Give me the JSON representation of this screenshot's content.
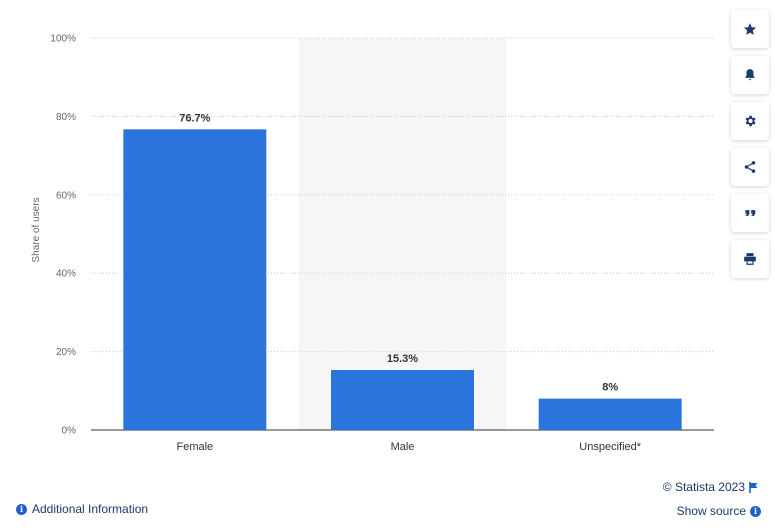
{
  "chart_data": {
    "type": "bar",
    "categories": [
      "Female",
      "Male",
      "Unspecified*"
    ],
    "values": [
      76.7,
      15.3,
      8
    ],
    "value_labels": [
      "76.7%",
      "15.3%",
      "8%"
    ],
    "ylabel": "Share of users",
    "xlabel": "",
    "ylim": [
      0,
      100
    ],
    "yticks": [
      0,
      20,
      40,
      60,
      80,
      100
    ],
    "ytick_labels": [
      "0%",
      "20%",
      "40%",
      "60%",
      "80%",
      "100%"
    ],
    "grid": true,
    "bar_color": "#2a74db",
    "highlight_category": "Male",
    "highlight_color": "#f6f6f6"
  },
  "toolbar": {
    "buttons": [
      {
        "name": "star-icon"
      },
      {
        "name": "bell-icon"
      },
      {
        "name": "gear-icon"
      },
      {
        "name": "share-icon"
      },
      {
        "name": "quote-icon"
      },
      {
        "name": "print-icon"
      }
    ]
  },
  "footer": {
    "credit": "© Statista 2023",
    "show_source": "Show source",
    "additional_info": "Additional Information"
  }
}
